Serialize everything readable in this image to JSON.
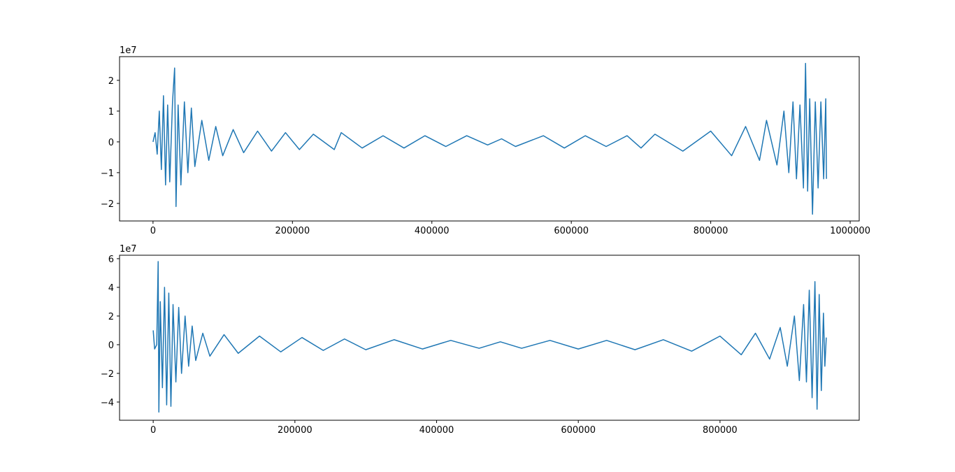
{
  "chart_data": [
    {
      "type": "line",
      "offset_label": "1e7",
      "xlim": [
        -48000,
        1013000
      ],
      "ylim": [
        -2.57,
        2.77
      ],
      "xticks": [
        0,
        200000,
        400000,
        600000,
        800000,
        1000000
      ],
      "yticks": [
        {
          "value": -2,
          "label": "−2"
        },
        {
          "value": -1,
          "label": "−1"
        },
        0,
        1,
        2
      ],
      "x": [
        0,
        3000,
        6000,
        9000,
        12000,
        15000,
        18000,
        21000,
        24000,
        28000,
        31000,
        33000,
        36000,
        40000,
        45000,
        50000,
        55000,
        60000,
        70000,
        80000,
        90000,
        100000,
        115000,
        130000,
        150000,
        170000,
        190000,
        210000,
        230000,
        260000,
        270000,
        300000,
        330000,
        360000,
        390000,
        420000,
        450000,
        480000,
        500000,
        520000,
        560000,
        590000,
        620000,
        650000,
        680000,
        700000,
        720000,
        760000,
        800000,
        830000,
        850000,
        870000,
        880000,
        895000,
        905000,
        912000,
        918000,
        923000,
        928000,
        933000,
        936000,
        939000,
        942000,
        946000,
        950000,
        954000,
        958000,
        962000,
        965000,
        966000
      ],
      "values": [
        0,
        0.3,
        -0.4,
        1.0,
        -0.9,
        1.5,
        -1.4,
        1.2,
        -1.3,
        1.3,
        2.4,
        -2.1,
        1.2,
        -1.4,
        1.3,
        -1.0,
        1.1,
        -0.8,
        0.7,
        -0.6,
        0.5,
        -0.45,
        0.4,
        -0.35,
        0.35,
        -0.3,
        0.3,
        -0.25,
        0.25,
        -0.25,
        0.3,
        -0.2,
        0.2,
        -0.2,
        0.2,
        -0.15,
        0.2,
        -0.1,
        0.1,
        -0.15,
        0.2,
        -0.2,
        0.2,
        -0.15,
        0.2,
        -0.2,
        0.25,
        -0.3,
        0.35,
        -0.45,
        0.5,
        -0.6,
        0.7,
        -0.75,
        1.0,
        -1.0,
        1.3,
        -1.2,
        1.2,
        -1.5,
        2.55,
        -1.6,
        1.4,
        -2.35,
        1.3,
        -1.5,
        1.3,
        -1.2,
        1.4,
        -1.2
      ],
      "color": "#1f77b4"
    },
    {
      "type": "line",
      "offset_label": "1e7",
      "xlim": [
        -47500,
        996500
      ],
      "ylim": [
        -5.27,
        6.24
      ],
      "xticks": [
        0,
        200000,
        400000,
        600000,
        800000
      ],
      "yticks": [
        {
          "value": -4,
          "label": "−4"
        },
        {
          "value": -2,
          "label": "−2"
        },
        0,
        2,
        4,
        6
      ],
      "x": [
        0,
        2000,
        5000,
        7000,
        8000,
        10000,
        13000,
        16000,
        19000,
        22000,
        25000,
        28000,
        32000,
        36000,
        40000,
        45000,
        50000,
        55000,
        60000,
        70000,
        80000,
        100000,
        120000,
        150000,
        180000,
        210000,
        240000,
        270000,
        300000,
        340000,
        380000,
        420000,
        460000,
        490000,
        520000,
        560000,
        600000,
        640000,
        680000,
        720000,
        760000,
        800000,
        830000,
        850000,
        870000,
        885000,
        895000,
        905000,
        912000,
        918000,
        922000,
        926000,
        930000,
        934000,
        937000,
        940000,
        943000,
        946000,
        948000,
        950000
      ],
      "values": [
        1.0,
        -0.3,
        0.0,
        5.8,
        -4.7,
        3.0,
        -3.0,
        4.0,
        -4.2,
        3.6,
        -4.3,
        2.8,
        -2.6,
        2.6,
        -2.0,
        2.0,
        -1.5,
        1.3,
        -1.1,
        0.8,
        -0.8,
        0.7,
        -0.6,
        0.6,
        -0.5,
        0.5,
        -0.4,
        0.4,
        -0.35,
        0.35,
        -0.3,
        0.3,
        -0.25,
        0.2,
        -0.25,
        0.3,
        -0.3,
        0.3,
        -0.35,
        0.35,
        -0.45,
        0.6,
        -0.7,
        0.8,
        -1.0,
        1.2,
        -1.5,
        2.0,
        -2.5,
        2.8,
        -2.6,
        3.8,
        -3.7,
        4.4,
        -4.5,
        3.5,
        -3.2,
        2.2,
        -1.5,
        0.5
      ],
      "color": "#1f77b4"
    }
  ]
}
